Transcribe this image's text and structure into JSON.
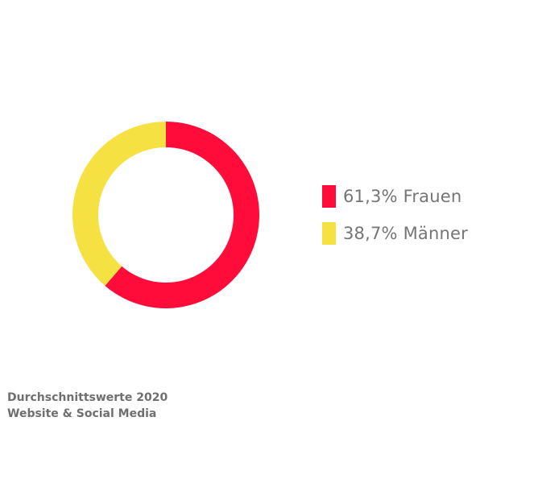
{
  "chart_data": {
    "type": "pie",
    "donut": true,
    "slices": [
      {
        "label": "61,3% Frauen",
        "value": 61.3,
        "color": "#ff0c3a"
      },
      {
        "label": "38,7% Männer",
        "value": 38.7,
        "color": "#f6e143"
      }
    ],
    "legend_placement": "right"
  },
  "note": {
    "line1": "Durchschnittswerte 2020",
    "line2": "Website & Social Media"
  }
}
